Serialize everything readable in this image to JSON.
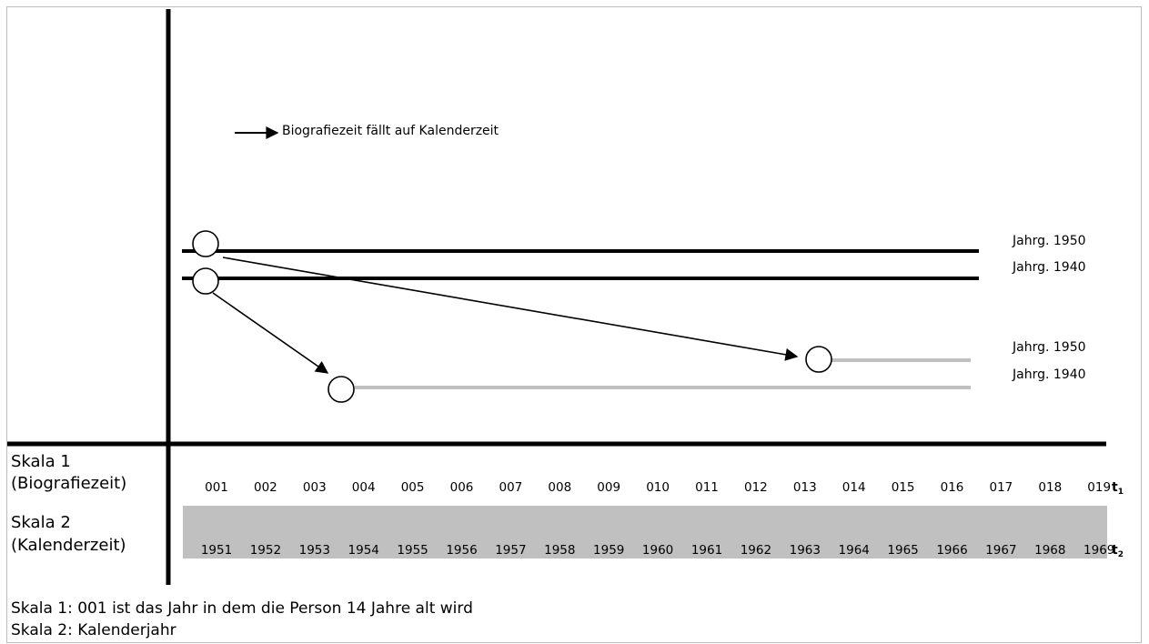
{
  "legend": {
    "text": "Biografiezeit fällt auf Kalenderzeit"
  },
  "lines": {
    "black_top": "Jahrg. 1950",
    "black_bottom": "Jahrg. 1940",
    "gray_top": "Jahrg. 1950",
    "gray_bottom": "Jahrg. 1940"
  },
  "scale1": {
    "label_line1": "Skala 1",
    "label_line2": "(Biografiezeit)",
    "ticks": [
      "001",
      "002",
      "003",
      "004",
      "005",
      "006",
      "007",
      "008",
      "009",
      "010",
      "011",
      "012",
      "013",
      "014",
      "015",
      "016",
      "017",
      "018",
      "019"
    ],
    "axis_symbol": "t",
    "axis_sub": "1"
  },
  "scale2": {
    "label_line1": "Skala 2",
    "label_line2": "(Kalenderzeit)",
    "ticks": [
      "1951",
      "1952",
      "1953",
      "1954",
      "1955",
      "1956",
      "1957",
      "1958",
      "1959",
      "1960",
      "1961",
      "1962",
      "1963",
      "1964",
      "1965",
      "1966",
      "1967",
      "1968",
      "1969"
    ],
    "axis_symbol": "t",
    "axis_sub": "2"
  },
  "notes": [
    "Skala 1: 001 ist das Jahr in dem die Person 14 Jahre alt wird",
    "Skala 2: Kalenderjahr"
  ],
  "colors": {
    "gray_line": "#c0c0c0",
    "scale2_band": "#c0c0c0",
    "axis": "#000000"
  }
}
